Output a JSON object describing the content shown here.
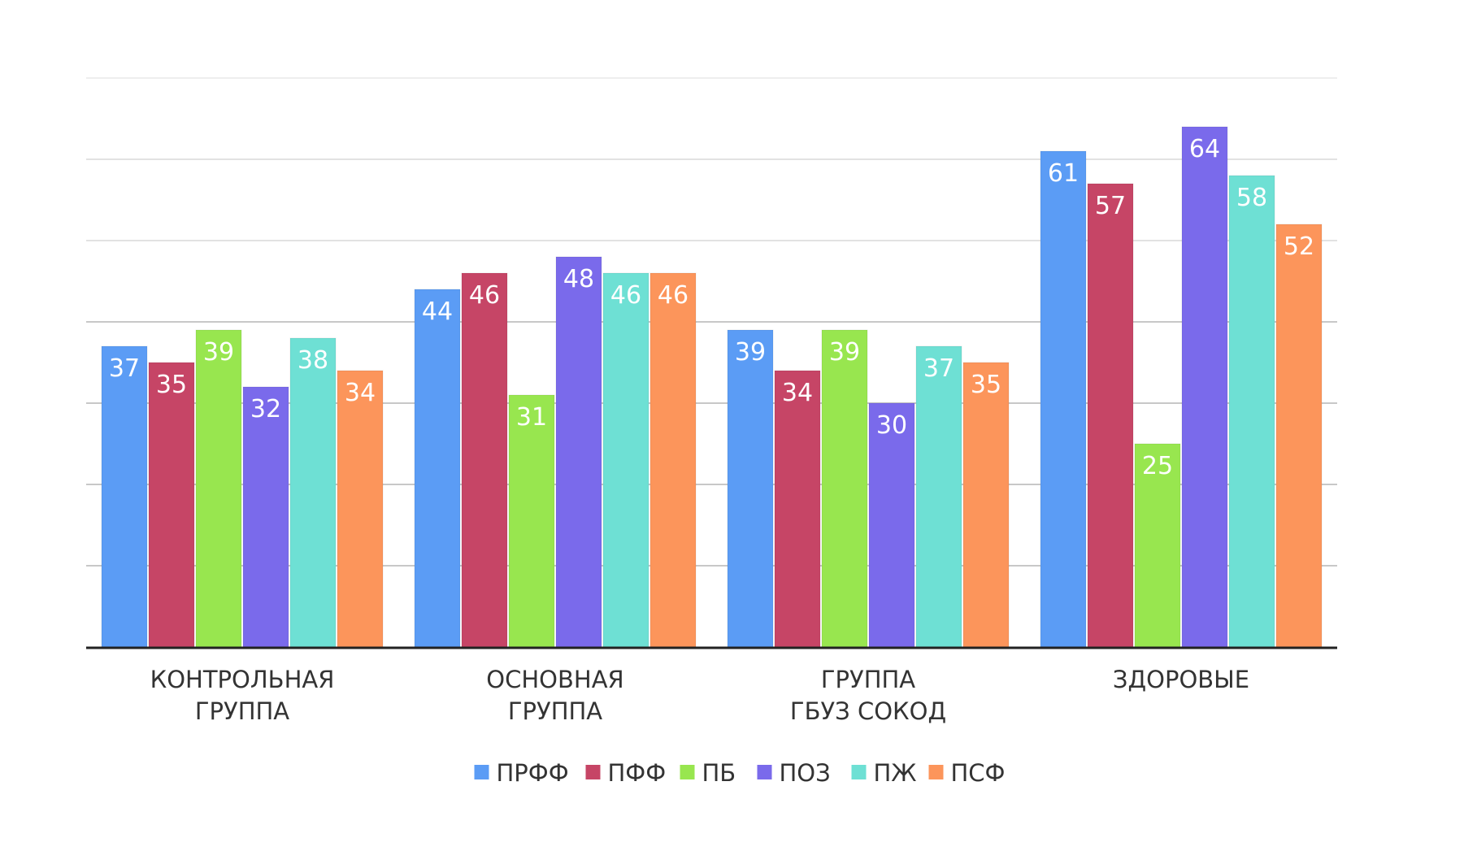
{
  "chart_data": {
    "type": "bar",
    "title": "",
    "xlabel": "",
    "ylabel": "",
    "ylim": [
      0,
      70
    ],
    "grid": true,
    "legend_position": "bottom",
    "categories": [
      [
        "КОНТРОЛЬНАЯ",
        "ГРУППА"
      ],
      [
        "ОСНОВНАЯ",
        "ГРУППА"
      ],
      [
        "ГРУППА",
        "ГБУЗ СОКОД"
      ],
      [
        "ЗДОРОВЫЕ"
      ]
    ],
    "series": [
      {
        "name": "ПРФФ",
        "color": "#5b9cf5",
        "values": [
          37,
          44,
          39,
          61
        ]
      },
      {
        "name": "ПФФ",
        "color": "#c64566",
        "values": [
          35,
          46,
          34,
          57
        ]
      },
      {
        "name": "ПБ",
        "color": "#98e64f",
        "values": [
          39,
          31,
          39,
          25
        ]
      },
      {
        "name": "ПОЗ",
        "color": "#7a6aeb",
        "values": [
          32,
          48,
          30,
          64
        ]
      },
      {
        "name": "ПЖ",
        "color": "#6ee0d4",
        "values": [
          38,
          46,
          37,
          58
        ]
      },
      {
        "name": "ПСФ",
        "color": "#fc955b",
        "values": [
          34,
          46,
          35,
          52
        ]
      }
    ]
  }
}
